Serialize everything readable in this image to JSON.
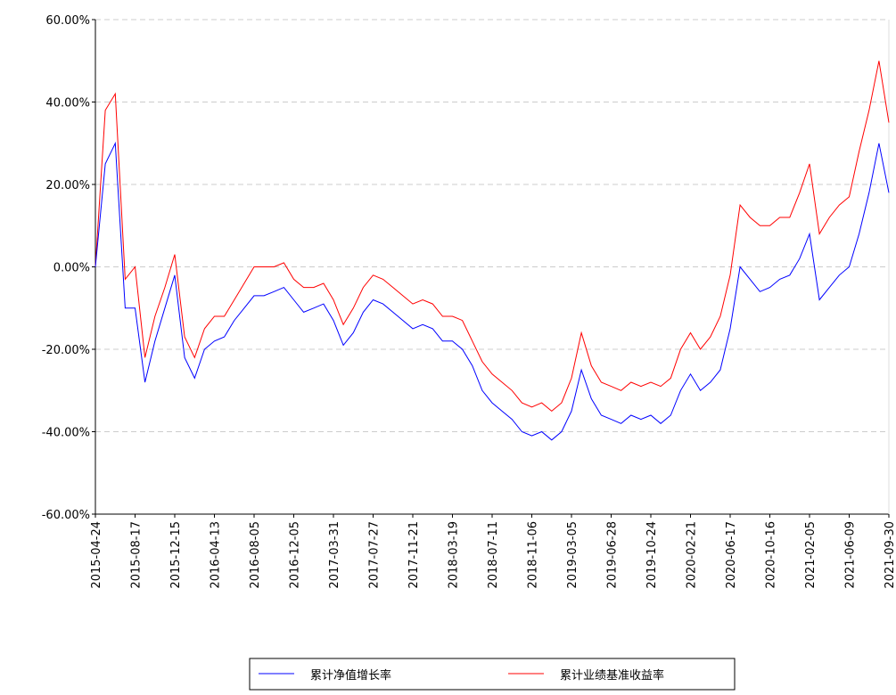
{
  "chart_data": {
    "type": "line",
    "categories": [
      "2015-04-24",
      null,
      null,
      null,
      "2015-08-17",
      null,
      null,
      null,
      "2015-12-15",
      null,
      null,
      null,
      "2016-04-13",
      null,
      null,
      null,
      "2016-08-05",
      null,
      null,
      null,
      "2016-12-05",
      null,
      null,
      null,
      "2017-03-31",
      null,
      null,
      null,
      "2017-07-27",
      null,
      null,
      null,
      "2017-11-21",
      null,
      null,
      null,
      "2018-03-19",
      null,
      null,
      null,
      "2018-07-11",
      null,
      null,
      null,
      "2018-11-06",
      null,
      null,
      null,
      "2019-03-05",
      null,
      null,
      null,
      "2019-06-28",
      null,
      null,
      null,
      "2019-10-24",
      null,
      null,
      null,
      "2020-02-21",
      null,
      null,
      null,
      "2020-06-17",
      null,
      null,
      null,
      "2020-10-16",
      null,
      null,
      null,
      "2021-02-05",
      null,
      null,
      null,
      "2021-06-09",
      null,
      null,
      null,
      "2021-09-30"
    ],
    "series": [
      {
        "name": "累计净值增长率",
        "color": "#0000ff",
        "values": [
          0,
          25,
          30,
          -10,
          -10,
          -28,
          -18,
          -10,
          -2,
          -22,
          -27,
          -20,
          -18,
          -17,
          -13,
          -10,
          -7,
          -7,
          -6,
          -5,
          -8,
          -11,
          -10,
          -9,
          -13,
          -19,
          -16,
          -11,
          -8,
          -9,
          -11,
          -13,
          -15,
          -14,
          -15,
          -18,
          -18,
          -20,
          -24,
          -30,
          -33,
          -35,
          -37,
          -40,
          -41,
          -40,
          -42,
          -40,
          -35,
          -25,
          -32,
          -36,
          -37,
          -38,
          -36,
          -37,
          -36,
          -38,
          -36,
          -30,
          -26,
          -30,
          -28,
          -25,
          -15,
          0,
          -3,
          -6,
          -5,
          -3,
          -2,
          2,
          8,
          -8,
          -5,
          -2,
          0,
          8,
          18,
          30,
          18
        ]
      },
      {
        "name": "累计业绩基准收益率",
        "color": "#ff0000",
        "values": [
          0,
          38,
          42,
          -3,
          0,
          -22,
          -12,
          -5,
          3,
          -17,
          -22,
          -15,
          -12,
          -12,
          -8,
          -4,
          0,
          0,
          0,
          1,
          -3,
          -5,
          -5,
          -4,
          -8,
          -14,
          -10,
          -5,
          -2,
          -3,
          -5,
          -7,
          -9,
          -8,
          -9,
          -12,
          -12,
          -13,
          -18,
          -23,
          -26,
          -28,
          -30,
          -33,
          -34,
          -33,
          -35,
          -33,
          -27,
          -16,
          -24,
          -28,
          -29,
          -30,
          -28,
          -29,
          -28,
          -29,
          -27,
          -20,
          -16,
          -20,
          -17,
          -12,
          -2,
          15,
          12,
          10,
          10,
          12,
          12,
          18,
          25,
          8,
          12,
          15,
          17,
          28,
          38,
          50,
          35
        ]
      }
    ],
    "ylim": [
      -60,
      60
    ],
    "yticks": [
      {
        "value": -60,
        "label": "-60.00%"
      },
      {
        "value": -40,
        "label": "-40.00%"
      },
      {
        "value": -20,
        "label": "-20.00%"
      },
      {
        "value": 0,
        "label": "0.00%"
      },
      {
        "value": 20,
        "label": "20.00%"
      },
      {
        "value": 40,
        "label": "40.00%"
      },
      {
        "value": 60,
        "label": "60.00%"
      }
    ],
    "grid": true
  }
}
